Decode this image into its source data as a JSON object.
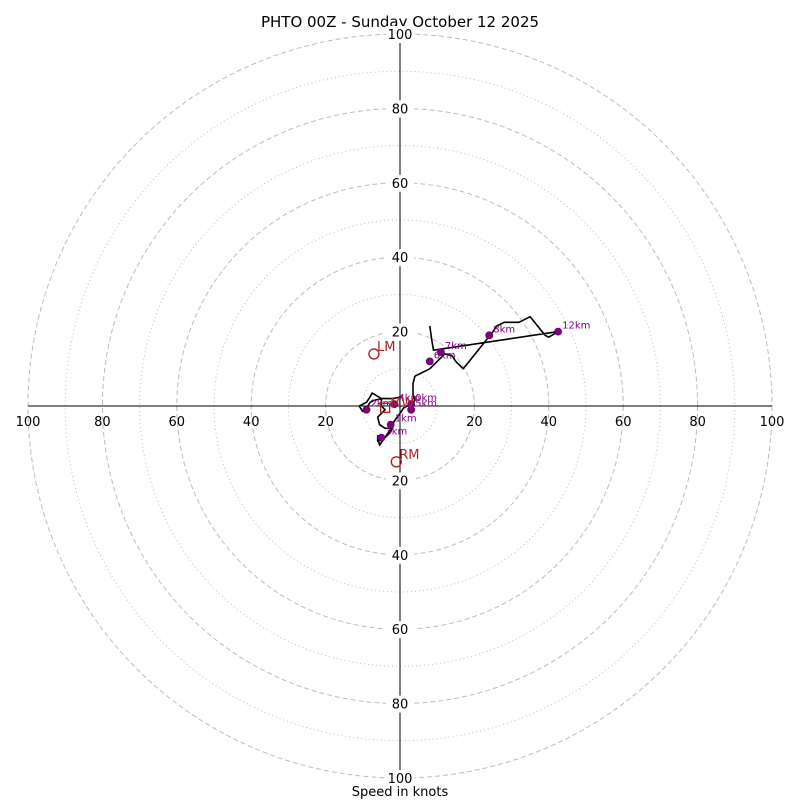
{
  "chart_data": {
    "type": "hodograph",
    "title": "PHTO 00Z - Sunday October 12 2025",
    "xlabel": "Speed in knots",
    "xlim": [
      -100,
      100
    ],
    "ylim": [
      -100,
      100
    ],
    "ring_labels": [
      "20",
      "40",
      "60",
      "80",
      "100"
    ],
    "rings_major": [
      20,
      40,
      60,
      80,
      100
    ],
    "rings_minor": [
      10,
      30,
      50,
      70,
      90
    ],
    "colors": {
      "trace": "#000000",
      "height_marker": "#800080",
      "motion": "#b22222",
      "ring": "#bdbdbd",
      "axis": "#000000"
    },
    "hodograph": [
      [
        0.5,
        2.5
      ],
      [
        -2,
        2
      ],
      [
        -5,
        2
      ],
      [
        -7,
        1.5
      ],
      [
        -8,
        1
      ],
      [
        -9,
        -0.5
      ],
      [
        -10,
        -1.5
      ],
      [
        -11,
        0
      ],
      [
        -9,
        1
      ],
      [
        -8,
        2.5
      ],
      [
        -7.5,
        3.5
      ],
      [
        -5,
        2
      ],
      [
        -5,
        0
      ],
      [
        -4,
        -1
      ],
      [
        -5,
        -2
      ],
      [
        -6,
        -3
      ],
      [
        -5.5,
        -5
      ],
      [
        -4,
        -6
      ],
      [
        -3,
        -6
      ],
      [
        -2,
        -5.5
      ],
      [
        -2.5,
        -7
      ],
      [
        -4,
        -8.5
      ],
      [
        -5,
        -9
      ],
      [
        -6,
        -9.5
      ],
      [
        -6,
        -8
      ],
      [
        -5.5,
        -10.5
      ],
      [
        -3,
        -7
      ],
      [
        -1.5,
        -4
      ],
      [
        0,
        -2
      ],
      [
        1,
        -0.5
      ],
      [
        2,
        0
      ],
      [
        3,
        0.5
      ],
      [
        4,
        1.5
      ],
      [
        3.5,
        3
      ],
      [
        3.5,
        6
      ],
      [
        4,
        8
      ],
      [
        6,
        9
      ],
      [
        8,
        10
      ],
      [
        10,
        12
      ],
      [
        12,
        14
      ],
      [
        14,
        13.5
      ],
      [
        15,
        12
      ],
      [
        17,
        10
      ],
      [
        19,
        12.5
      ],
      [
        21,
        15
      ],
      [
        23,
        17.5
      ],
      [
        25,
        20
      ],
      [
        26,
        21.5
      ],
      [
        28,
        22.5
      ],
      [
        32,
        22.5
      ],
      [
        35,
        24
      ],
      [
        37,
        21.5
      ],
      [
        39,
        19
      ],
      [
        40,
        18.5
      ],
      [
        42.5,
        20
      ],
      [
        9,
        15
      ],
      [
        8.5,
        18
      ],
      [
        8,
        21.5
      ]
    ],
    "height_markers": [
      {
        "label": "0km",
        "u": 3,
        "v": 0.5
      },
      {
        "label": "1km",
        "u": -2.5,
        "v": -5
      },
      {
        "label": "2km",
        "u": -9,
        "v": -1
      },
      {
        "label": "3km",
        "u": -5,
        "v": -8.5
      },
      {
        "label": "4km",
        "u": -1.5,
        "v": 0.5
      },
      {
        "label": "5km",
        "u": 3,
        "v": -1
      },
      {
        "label": "6km",
        "u": 8,
        "v": 12
      },
      {
        "label": "7km",
        "u": 11,
        "v": 14.5
      },
      {
        "label": "8km",
        "u": 24,
        "v": 19
      },
      {
        "label": "12km",
        "u": 42.5,
        "v": 20
      }
    ],
    "storm_motion": [
      {
        "label": "LM",
        "u": -7,
        "v": 14
      },
      {
        "label": "RM",
        "u": -1,
        "v": -15
      },
      {
        "label": "MW",
        "u": -4,
        "v": -0.5
      }
    ]
  }
}
